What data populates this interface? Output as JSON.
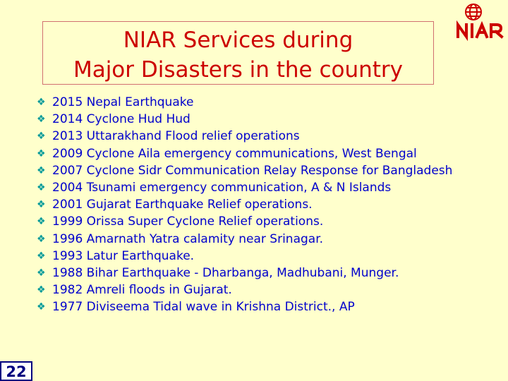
{
  "slide": {
    "title_line1": "NIAR Services during",
    "title_line2": "Major Disasters in the country",
    "logo_text": "NIAR",
    "bullet_icon": "diamond-bullet-icon",
    "items": [
      "2015 Nepal Earthquake",
      "2014 Cyclone Hud Hud",
      "2013 Uttarakhand Flood relief operations",
      "2009 Cyclone Aila emergency communications, West Bengal",
      "2007 Cyclone Sidr Communication Relay Response for Bangladesh",
      "2004 Tsunami emergency communication, A & N Islands",
      "2001 Gujarat Earthquake Relief operations.",
      "1999 Orissa Super Cyclone Relief operations.",
      "1996 Amarnath Yatra calamity near Srinagar.",
      "1993 Latur Earthquake.",
      "1988 Bihar Earthquake - Dharbanga, Madhubani, Munger.",
      "1982 Amreli floods in Gujarat.",
      "1977 Diviseema Tidal wave in Krishna District., AP"
    ],
    "page_number": "22"
  },
  "colors": {
    "background": "#ffffcc",
    "title": "#cc0000",
    "body_text": "#0000cc",
    "bullet": "#009999",
    "logo": "#cc0000",
    "page_number": "#000080"
  }
}
